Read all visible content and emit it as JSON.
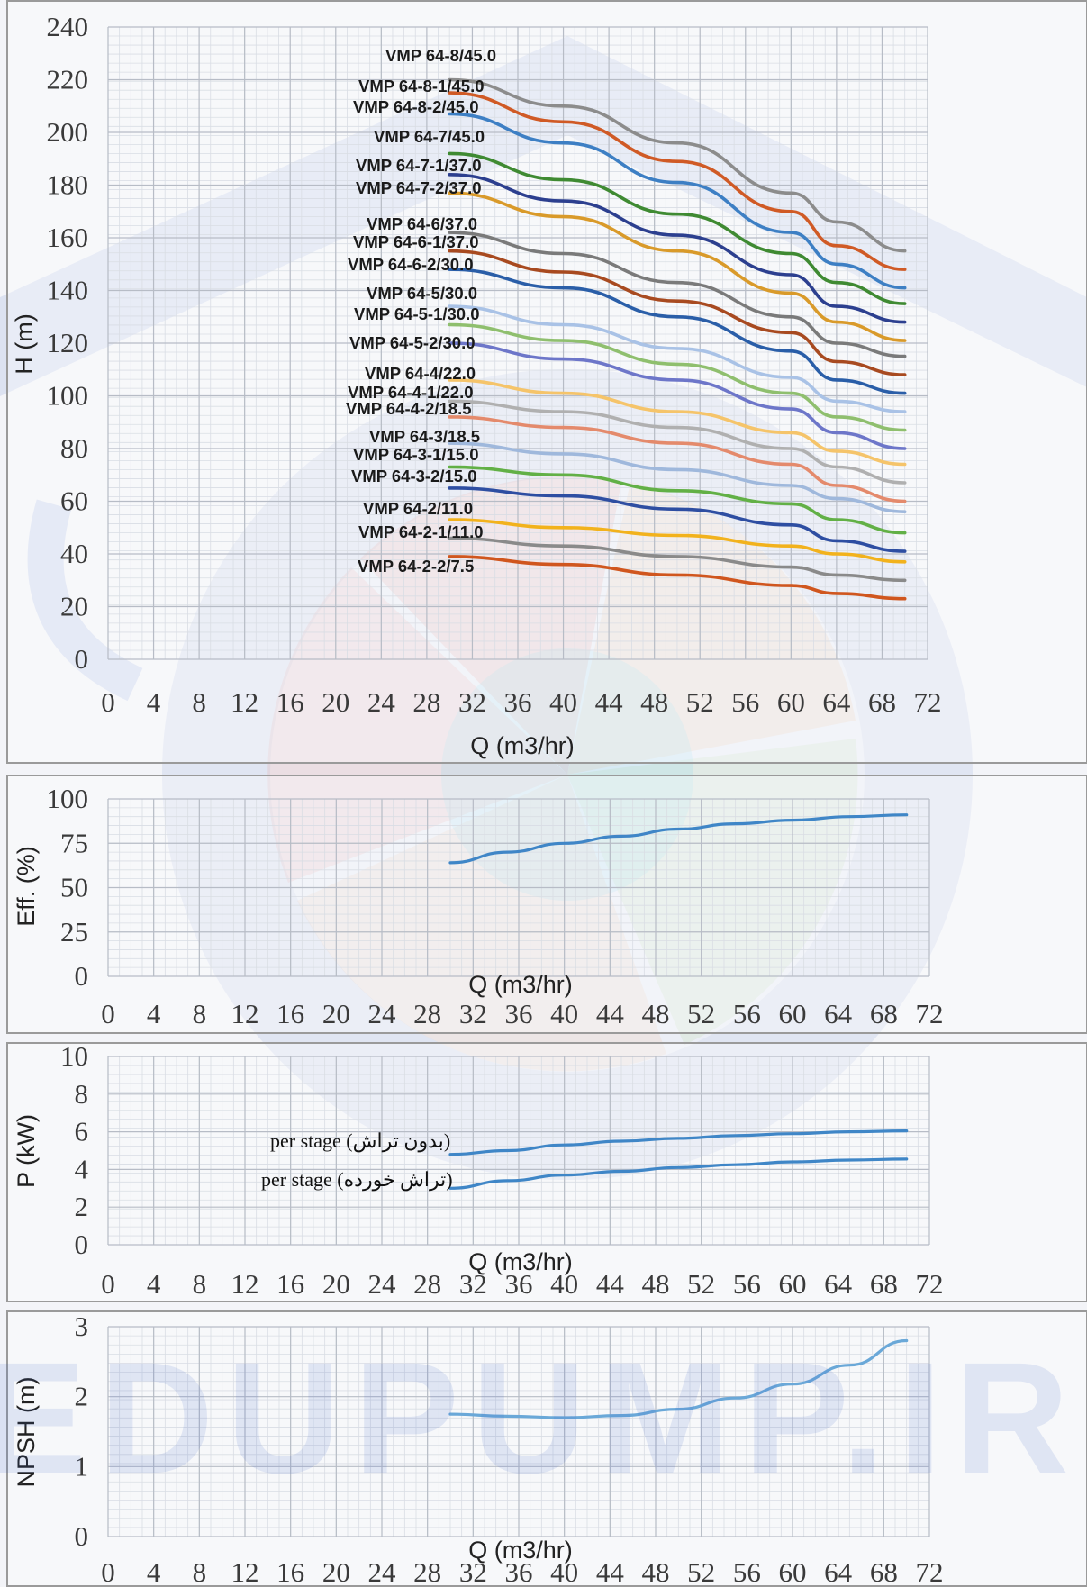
{
  "watermark": {
    "text": "EDUPUMP.IR",
    "colors": {
      "blue": "#3c64c8",
      "orange": "#f39a4e",
      "green": "#9ad06a",
      "red": "#e8563c",
      "cyan": "#7fd8ee"
    }
  },
  "chart_data": [
    {
      "type": "line",
      "id": "head",
      "xlabel": "Q (m3/hr)",
      "ylabel": "H (m)",
      "xlim": [
        0,
        72
      ],
      "ylim": [
        0,
        240
      ],
      "xticks": [
        "0",
        "4",
        "8",
        "12",
        "16",
        "20",
        "24",
        "28",
        "32",
        "36",
        "40",
        "44",
        "48",
        "52",
        "56",
        "60",
        "64",
        "68",
        "72"
      ],
      "yticks": [
        "0",
        "20",
        "40",
        "60",
        "80",
        "100",
        "120",
        "140",
        "160",
        "180",
        "200",
        "220",
        "240"
      ],
      "grid": true,
      "x": [
        30,
        40,
        50,
        60,
        64,
        70
      ],
      "series": [
        {
          "name": "VMP 64-8/45.0",
          "color": "#8c8c8c",
          "values": [
            220,
            210,
            196,
            177,
            166,
            155
          ]
        },
        {
          "name": "VMP 64-8-1/45.0",
          "color": "#d05a25",
          "values": [
            215,
            204,
            189,
            170,
            157,
            148
          ]
        },
        {
          "name": "VMP 64-8-2/45.0",
          "color": "#3d7fc4",
          "values": [
            207,
            196,
            181,
            162,
            150,
            141
          ]
        },
        {
          "name": "VMP 64-7/45.0",
          "color": "#3f8a32",
          "values": [
            192,
            182,
            169,
            154,
            143,
            135
          ]
        },
        {
          "name": "VMP 64-7-1/37.0",
          "color": "#2c3f8f",
          "values": [
            184,
            174,
            161,
            146,
            134,
            128
          ]
        },
        {
          "name": "VMP 64-7-2/37.0",
          "color": "#d99a2a",
          "values": [
            177,
            168,
            155,
            139,
            128,
            121
          ]
        },
        {
          "name": "VMP 64-6/37.0",
          "color": "#7a7a7a",
          "values": [
            162,
            154,
            143,
            130,
            120,
            115
          ]
        },
        {
          "name": "VMP 64-6-1/37.0",
          "color": "#a84a20",
          "values": [
            155,
            147,
            136,
            124,
            113,
            108
          ]
        },
        {
          "name": "VMP 64-6-2/30.0",
          "color": "#2a5ea8",
          "values": [
            148,
            141,
            130,
            117,
            106,
            101
          ]
        },
        {
          "name": "VMP 64-5/30.0",
          "color": "#a9c2e6",
          "values": [
            134,
            127,
            118,
            107,
            98,
            94
          ]
        },
        {
          "name": "VMP 64-5-1/30.0",
          "color": "#8fbf6e",
          "values": [
            127,
            121,
            112,
            101,
            92,
            87
          ]
        },
        {
          "name": "VMP 64-5-2/30.0",
          "color": "#6d76c9",
          "values": [
            120,
            114,
            106,
            95,
            86,
            80
          ]
        },
        {
          "name": "VMP 64-4/22.0",
          "color": "#f5c46a",
          "values": [
            106,
            101,
            94,
            86,
            79,
            74
          ]
        },
        {
          "name": "VMP 64-4-1/22.0",
          "color": "#b0b0b0",
          "values": [
            98,
            94,
            88,
            80,
            73,
            67
          ]
        },
        {
          "name": "VMP 64-4-2/18.5",
          "color": "#e48a6c",
          "values": [
            92,
            88,
            82,
            74,
            66,
            60
          ]
        },
        {
          "name": "VMP 64-3/18.5",
          "color": "#9fb8dc",
          "values": [
            82,
            78,
            72,
            66,
            61,
            56
          ]
        },
        {
          "name": "VMP 64-3-1/15.0",
          "color": "#62b046",
          "values": [
            73,
            70,
            64,
            59,
            53,
            48
          ]
        },
        {
          "name": "VMP 64-3-2/15.0",
          "color": "#2e4ea2",
          "values": [
            65,
            62,
            57,
            51,
            45,
            41
          ]
        },
        {
          "name": "VMP 64-2/11.0",
          "color": "#f2b21c",
          "values": [
            53,
            50,
            47,
            43,
            40,
            37
          ]
        },
        {
          "name": "VMP 64-2-1/11.0",
          "color": "#8a8a8a",
          "values": [
            46,
            43,
            39,
            35,
            32,
            30
          ]
        },
        {
          "name": "VMP 64-2-2/7.5",
          "color": "#d0561e",
          "values": [
            39,
            36,
            32,
            28,
            25,
            23
          ]
        }
      ]
    },
    {
      "type": "line",
      "id": "efficiency",
      "xlabel": "Q (m3/hr)",
      "ylabel": "Eff. (%)",
      "xlim": [
        0,
        72
      ],
      "ylim": [
        0,
        100
      ],
      "xticks": [
        "0",
        "4",
        "8",
        "12",
        "16",
        "20",
        "24",
        "28",
        "32",
        "36",
        "40",
        "44",
        "48",
        "52",
        "56",
        "60",
        "64",
        "68",
        "72"
      ],
      "yticks": [
        "0",
        "25",
        "50",
        "75",
        "100"
      ],
      "grid": true,
      "x": [
        30,
        35,
        40,
        45,
        50,
        55,
        60,
        65,
        70
      ],
      "series": [
        {
          "color": "#3f86c7",
          "values": [
            64,
            70,
            75,
            79,
            83,
            86,
            88,
            90,
            91
          ]
        }
      ]
    },
    {
      "type": "line",
      "id": "power",
      "xlabel": "Q (m3/hr)",
      "ylabel": "P (kW)",
      "xlim": [
        0,
        72
      ],
      "ylim": [
        0,
        10
      ],
      "xticks": [
        "0",
        "4",
        "8",
        "12",
        "16",
        "20",
        "24",
        "28",
        "32",
        "36",
        "40",
        "44",
        "48",
        "52",
        "56",
        "60",
        "64",
        "68",
        "72"
      ],
      "yticks": [
        "0",
        "2",
        "4",
        "6",
        "8",
        "10"
      ],
      "grid": true,
      "x": [
        30,
        35,
        40,
        45,
        50,
        55,
        60,
        65,
        70
      ],
      "series": [
        {
          "name": "per stage (بدون تراش)",
          "color": "#3f86c7",
          "values": [
            4.8,
            5.0,
            5.3,
            5.5,
            5.65,
            5.8,
            5.9,
            6.0,
            6.05
          ]
        },
        {
          "name": "per stage (تراش خورده)",
          "color": "#3f86c7",
          "values": [
            3.0,
            3.4,
            3.7,
            3.9,
            4.1,
            4.25,
            4.4,
            4.5,
            4.55
          ]
        }
      ]
    },
    {
      "type": "line",
      "id": "npsh",
      "xlabel": "Q (m3/hr)",
      "ylabel": "NPSH (m)",
      "xlim": [
        0,
        72
      ],
      "ylim": [
        0,
        3
      ],
      "xticks": [
        "0",
        "4",
        "8",
        "12",
        "16",
        "20",
        "24",
        "28",
        "32",
        "36",
        "40",
        "44",
        "48",
        "52",
        "56",
        "60",
        "64",
        "68",
        "72"
      ],
      "yticks": [
        "0",
        "1",
        "2",
        "3"
      ],
      "grid": true,
      "x": [
        30,
        35,
        40,
        45,
        50,
        55,
        60,
        65,
        70
      ],
      "series": [
        {
          "color": "#6aa8d8",
          "values": [
            1.75,
            1.72,
            1.7,
            1.73,
            1.82,
            1.98,
            2.18,
            2.45,
            2.8
          ]
        }
      ]
    }
  ]
}
